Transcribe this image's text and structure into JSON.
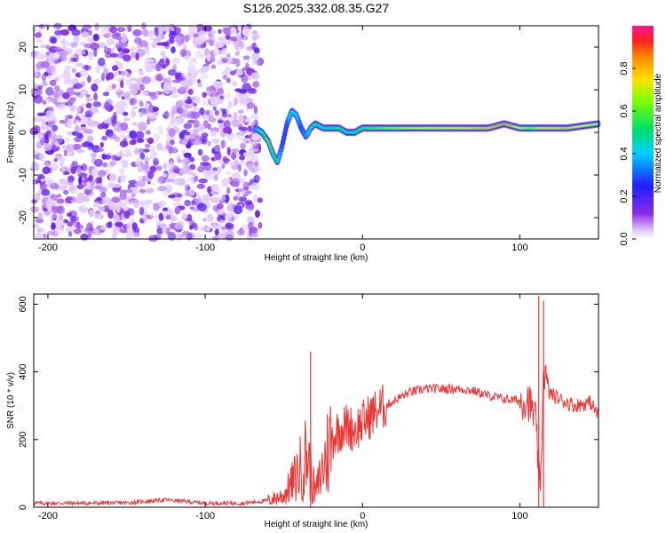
{
  "chart_data": [
    {
      "type": "heatmap",
      "title": "S126.2025.332.08.35.G27",
      "xlabel": "Height of straight line (km)",
      "ylabel": "Frequency (Hz)",
      "xlim": [
        -209,
        150
      ],
      "ylim": [
        -25,
        25
      ],
      "xticks": [
        -200,
        -100,
        0,
        100
      ],
      "yticks": [
        -20,
        -10,
        0,
        10,
        20
      ],
      "noise_region_x": [
        -209,
        -65
      ],
      "signal_ridge": {
        "x": [
          -68,
          -64,
          -60,
          -57,
          -54,
          -51,
          -48,
          -45,
          -42,
          -39,
          -36,
          -33,
          -30,
          -25,
          -20,
          -15,
          -10,
          -5,
          0,
          10,
          30,
          60,
          80,
          90,
          100,
          107,
          115,
          130,
          150
        ],
        "freq": [
          1,
          0,
          -2,
          -5,
          -7,
          -3,
          2,
          5,
          4,
          1,
          -1,
          1,
          2,
          1,
          1,
          1,
          0,
          0,
          1,
          1,
          1,
          1,
          1,
          2,
          1,
          1,
          1,
          1,
          2
        ],
        "amplitude": [
          0.35,
          0.45,
          0.6,
          0.55,
          0.45,
          0.3,
          0.3,
          0.5,
          0.4,
          0.3,
          0.35,
          0.45,
          0.5,
          0.45,
          0.5,
          0.55,
          0.45,
          0.5,
          0.55,
          0.6,
          0.7,
          0.75,
          0.8,
          0.85,
          0.75,
          0.6,
          0.75,
          0.8,
          0.7
        ]
      },
      "colorbar": {
        "label": "Normalized spectral amplitude",
        "range": [
          0,
          1
        ],
        "ticks": [
          "0.0",
          "0.2",
          "0.4",
          "0.6",
          "0.8"
        ]
      }
    },
    {
      "type": "line",
      "xlabel": "Height of straight line (km)",
      "ylabel": "SNR (10 * v/v)",
      "xlim": [
        -209,
        150
      ],
      "ylim": [
        0,
        630
      ],
      "xticks": [
        -200,
        -100,
        0,
        100
      ],
      "yticks": [
        0,
        200,
        400,
        600
      ],
      "series": [
        {
          "name": "SNR",
          "color": "#ee3333",
          "x": [
            -209,
            -180,
            -150,
            -125,
            -100,
            -75,
            -60,
            -50,
            -45,
            -40,
            -35,
            -32,
            -30,
            -25,
            -20,
            -15,
            -10,
            -5,
            0,
            5,
            10,
            15,
            20,
            30,
            40,
            50,
            60,
            70,
            80,
            90,
            100,
            105,
            110,
            112,
            113,
            115,
            118,
            125,
            135,
            145,
            150
          ],
          "y": [
            12,
            12,
            13,
            22,
            12,
            12,
            20,
            35,
            70,
            110,
            160,
            80,
            40,
            120,
            200,
            230,
            240,
            230,
            250,
            270,
            290,
            300,
            315,
            340,
            350,
            350,
            350,
            345,
            330,
            320,
            315,
            320,
            260,
            100,
            20,
            420,
            340,
            320,
            300,
            310,
            270
          ]
        }
      ],
      "spikes": [
        {
          "x": -33,
          "y": 460
        },
        {
          "x": 112,
          "y": 625
        },
        {
          "x": 115,
          "y": 610
        }
      ]
    }
  ]
}
